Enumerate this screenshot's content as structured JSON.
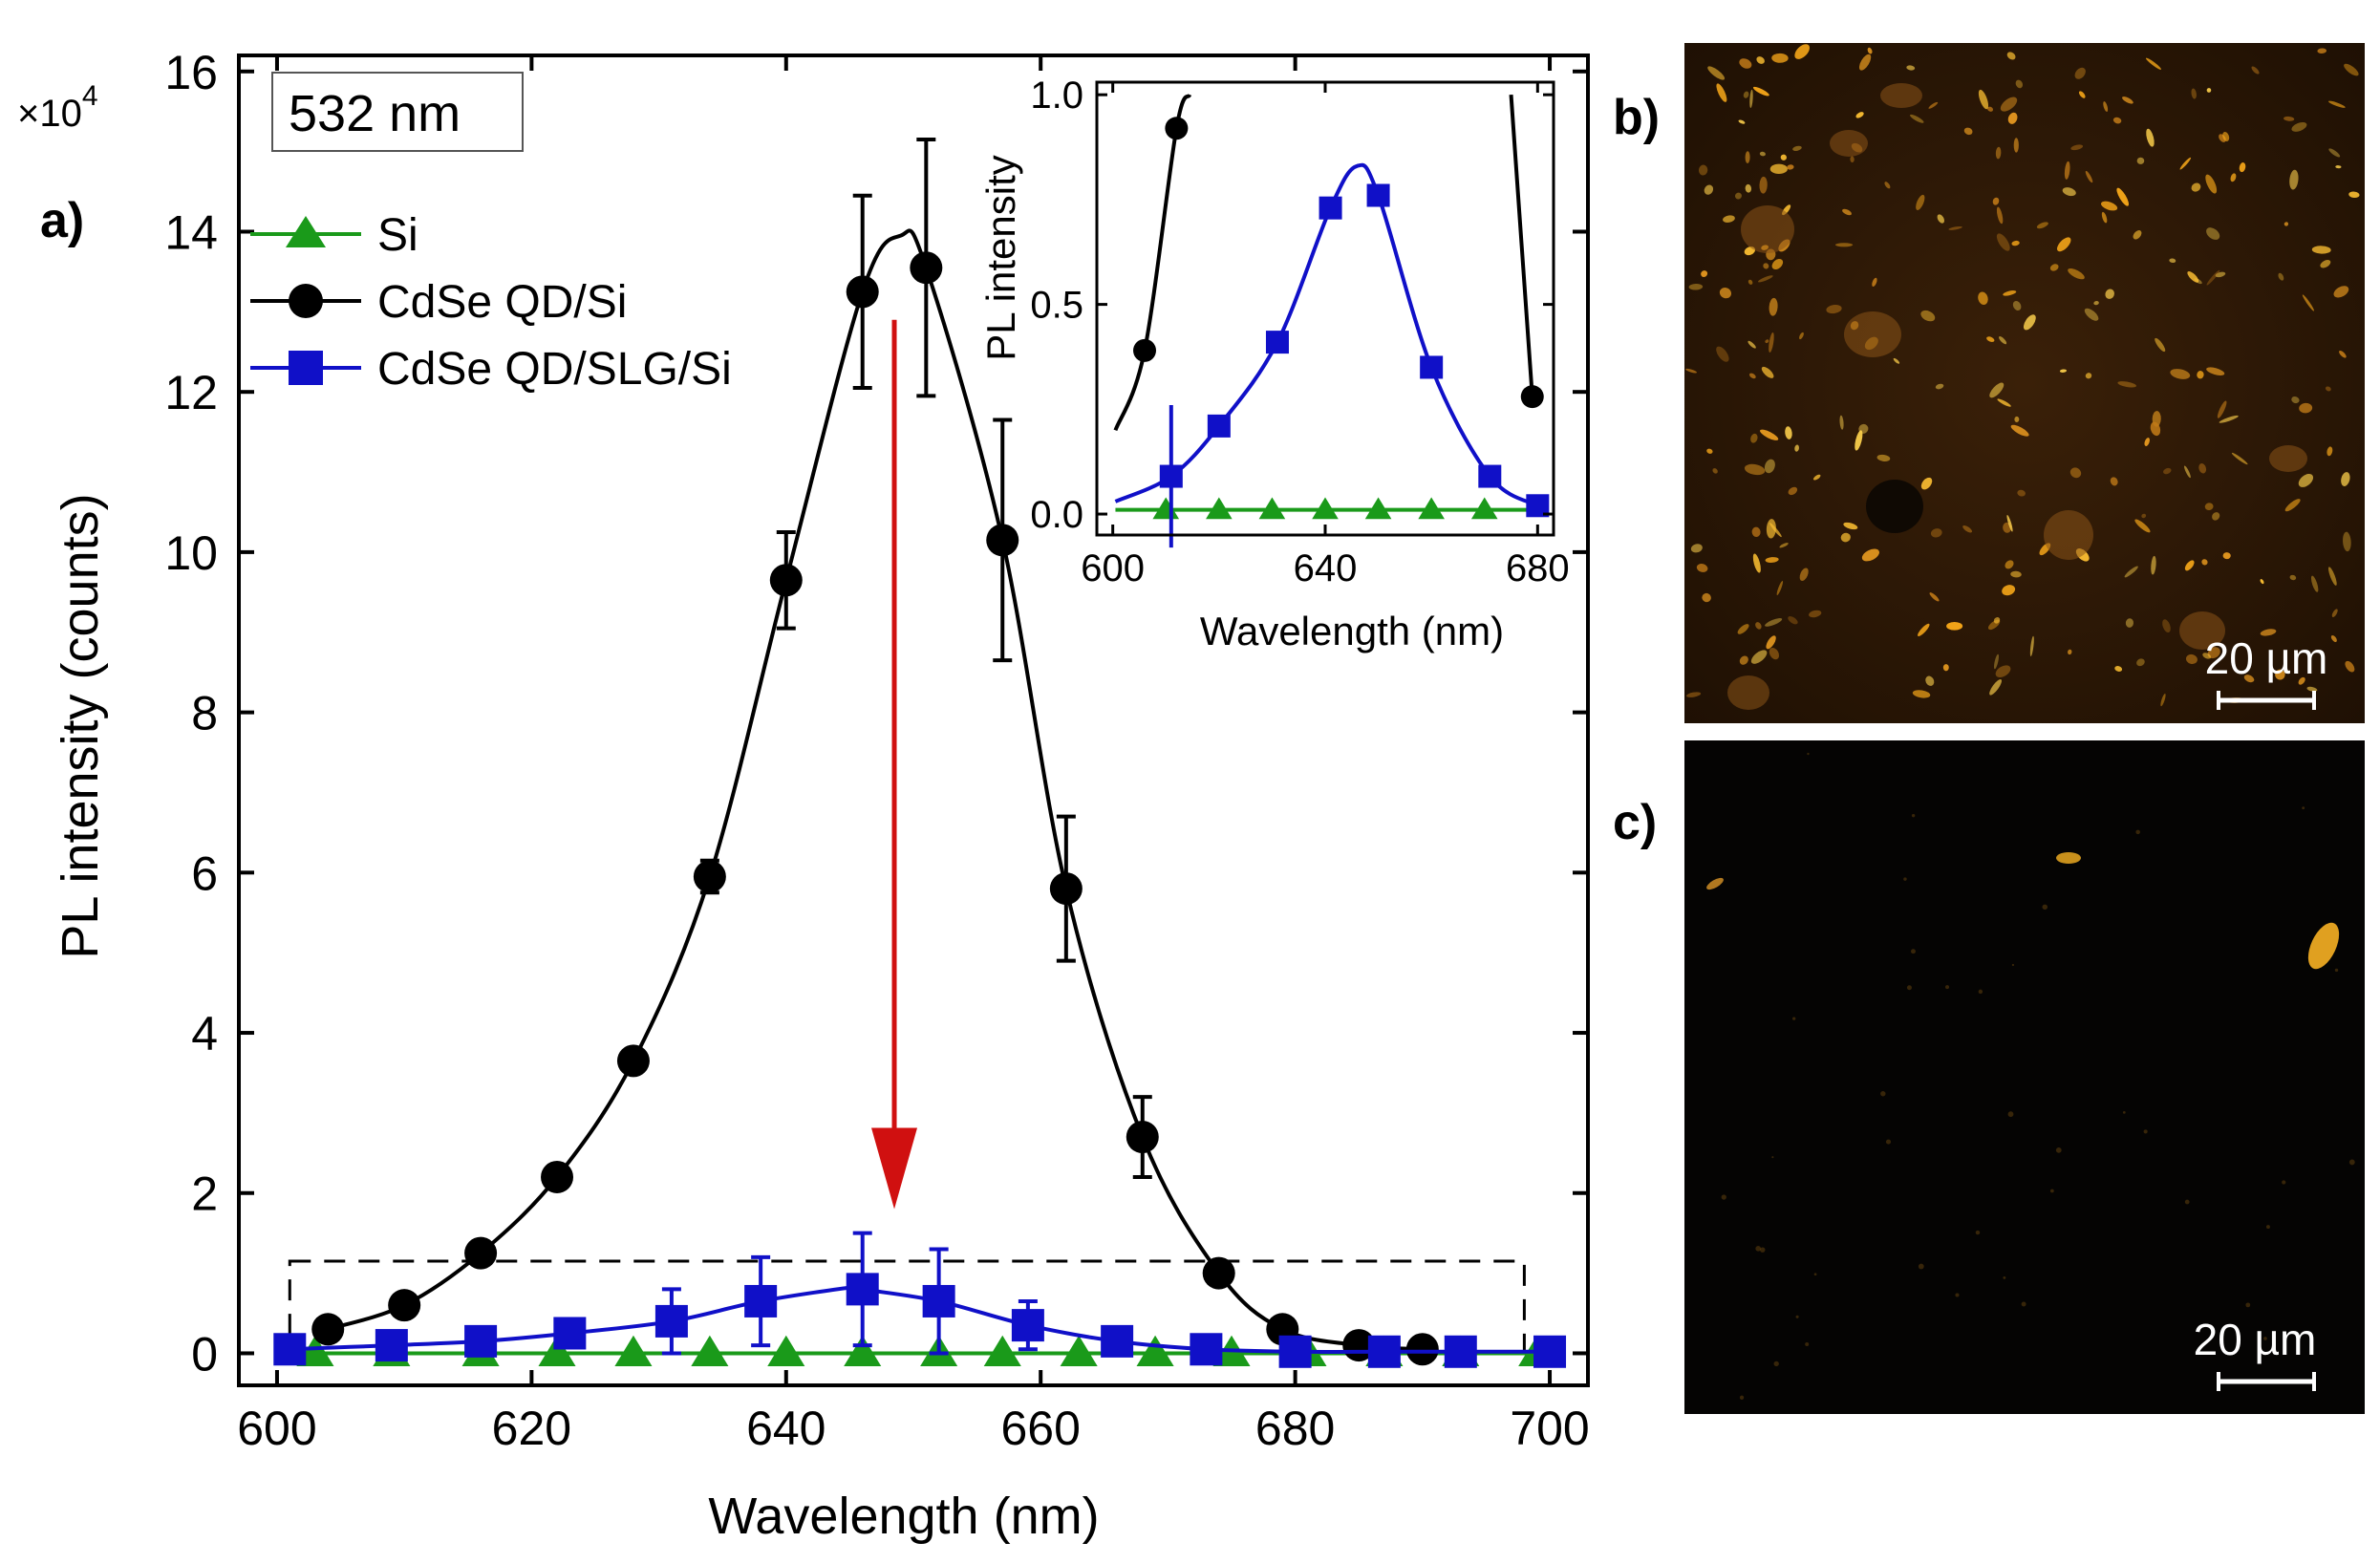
{
  "chart_data": [
    {
      "panel": "a)",
      "type": "scatter",
      "annotation": "532 nm",
      "xlabel": "Wavelength (nm)",
      "ylabel": "PL intensity (counts)",
      "y_multiplier": "×10",
      "y_multiplier_exp": "4",
      "xlim": [
        597,
        703
      ],
      "ylim": [
        -0.4,
        16.2
      ],
      "xticks": [
        600,
        620,
        640,
        660,
        680,
        700
      ],
      "yticks": [
        0,
        2,
        4,
        6,
        8,
        10,
        12,
        14,
        16
      ],
      "series": [
        {
          "name": "Si",
          "color": "#1a9a1a",
          "marker": "triangle",
          "x": [
            603,
            609,
            616,
            622,
            628,
            634,
            640,
            646,
            652,
            657,
            663,
            669,
            675,
            681,
            687,
            693,
            699
          ],
          "y": [
            0,
            0,
            0,
            0,
            0,
            0,
            0,
            0,
            0,
            0,
            0,
            0,
            0,
            0,
            0,
            0,
            0
          ]
        },
        {
          "name": "CdSe QD/Si",
          "color": "#000000",
          "marker": "circle",
          "x": [
            604,
            610,
            616,
            622,
            628,
            634,
            640,
            646,
            651,
            657,
            662,
            668,
            674,
            679,
            685,
            690
          ],
          "y": [
            0.3,
            0.6,
            1.25,
            2.2,
            3.65,
            5.95,
            9.65,
            13.25,
            13.55,
            10.15,
            5.8,
            2.7,
            1.0,
            0.3,
            0.1,
            0.05
          ],
          "err": [
            0,
            0,
            0,
            0,
            0,
            0.2,
            0.6,
            1.2,
            1.6,
            1.5,
            0.9,
            0.5,
            0,
            0,
            0,
            0
          ],
          "curve_peak_x": 649,
          "curve_peak_y": 13.95
        },
        {
          "name": "CdSe QD/SLG/Si",
          "color": "#1010c8",
          "marker": "square",
          "x": [
            601,
            609,
            616,
            623,
            631,
            638,
            646,
            652,
            659,
            666,
            673,
            680,
            687,
            693,
            700
          ],
          "y": [
            0.05,
            0.1,
            0.15,
            0.25,
            0.4,
            0.65,
            0.8,
            0.65,
            0.35,
            0.15,
            0.05,
            0.02,
            0.02,
            0.02,
            0.02
          ],
          "err": [
            0,
            0,
            0,
            0,
            0.4,
            0.55,
            0.7,
            0.65,
            0.3,
            0,
            0,
            0,
            0,
            0,
            0
          ],
          "curve_peak_x": 645.5,
          "curve_peak_y": 0.83
        }
      ],
      "arrow": {
        "x": 648.5,
        "from_y": 12.9,
        "to_y": 1.8,
        "color": "#d01010"
      },
      "zoom_box": {
        "x": [
          601,
          698
        ],
        "y": [
          0,
          1.15
        ]
      }
    },
    {
      "panel": "inset",
      "type": "scatter",
      "xlabel": "Wavelength (nm)",
      "ylabel": "PL intensity",
      "xlim": [
        597,
        683
      ],
      "ylim": [
        -0.05,
        1.03
      ],
      "xticks": [
        600,
        640,
        680
      ],
      "yticks": [
        0.0,
        0.5,
        1.0
      ],
      "ytick_labels": [
        "0.0",
        "0.5",
        "1.0"
      ],
      "series": [
        {
          "name": "Si",
          "color": "#1a9a1a",
          "marker": "triangle",
          "x": [
            610,
            620,
            630,
            640,
            650,
            660,
            670
          ],
          "y": [
            0.01,
            0.01,
            0.01,
            0.01,
            0.01,
            0.01,
            0.01
          ]
        },
        {
          "name": "CdSe QD/Si",
          "color": "#000000",
          "marker": "circle",
          "x": [
            606,
            612,
            679
          ],
          "y": [
            0.39,
            0.92,
            0.28
          ]
        },
        {
          "name": "CdSe QD/SLG/Si",
          "color": "#1010c8",
          "marker": "square",
          "x": [
            611,
            620,
            631,
            641,
            650,
            660,
            671,
            680
          ],
          "y": [
            0.09,
            0.21,
            0.41,
            0.73,
            0.76,
            0.35,
            0.09,
            0.02
          ],
          "err": [
            0.17,
            0,
            0,
            0,
            0,
            0,
            0,
            0
          ],
          "curve_peak_x": 646,
          "curve_peak_y": 0.83
        }
      ]
    }
  ],
  "panels": {
    "b": {
      "label": "b)",
      "scale_bar": "20 µm"
    },
    "c": {
      "label": "c)",
      "scale_bar": "20 µm"
    }
  },
  "colors": {
    "si": "#1a9a1a",
    "qd": "#000000",
    "slg": "#1010c8",
    "arrow": "#d01010"
  }
}
